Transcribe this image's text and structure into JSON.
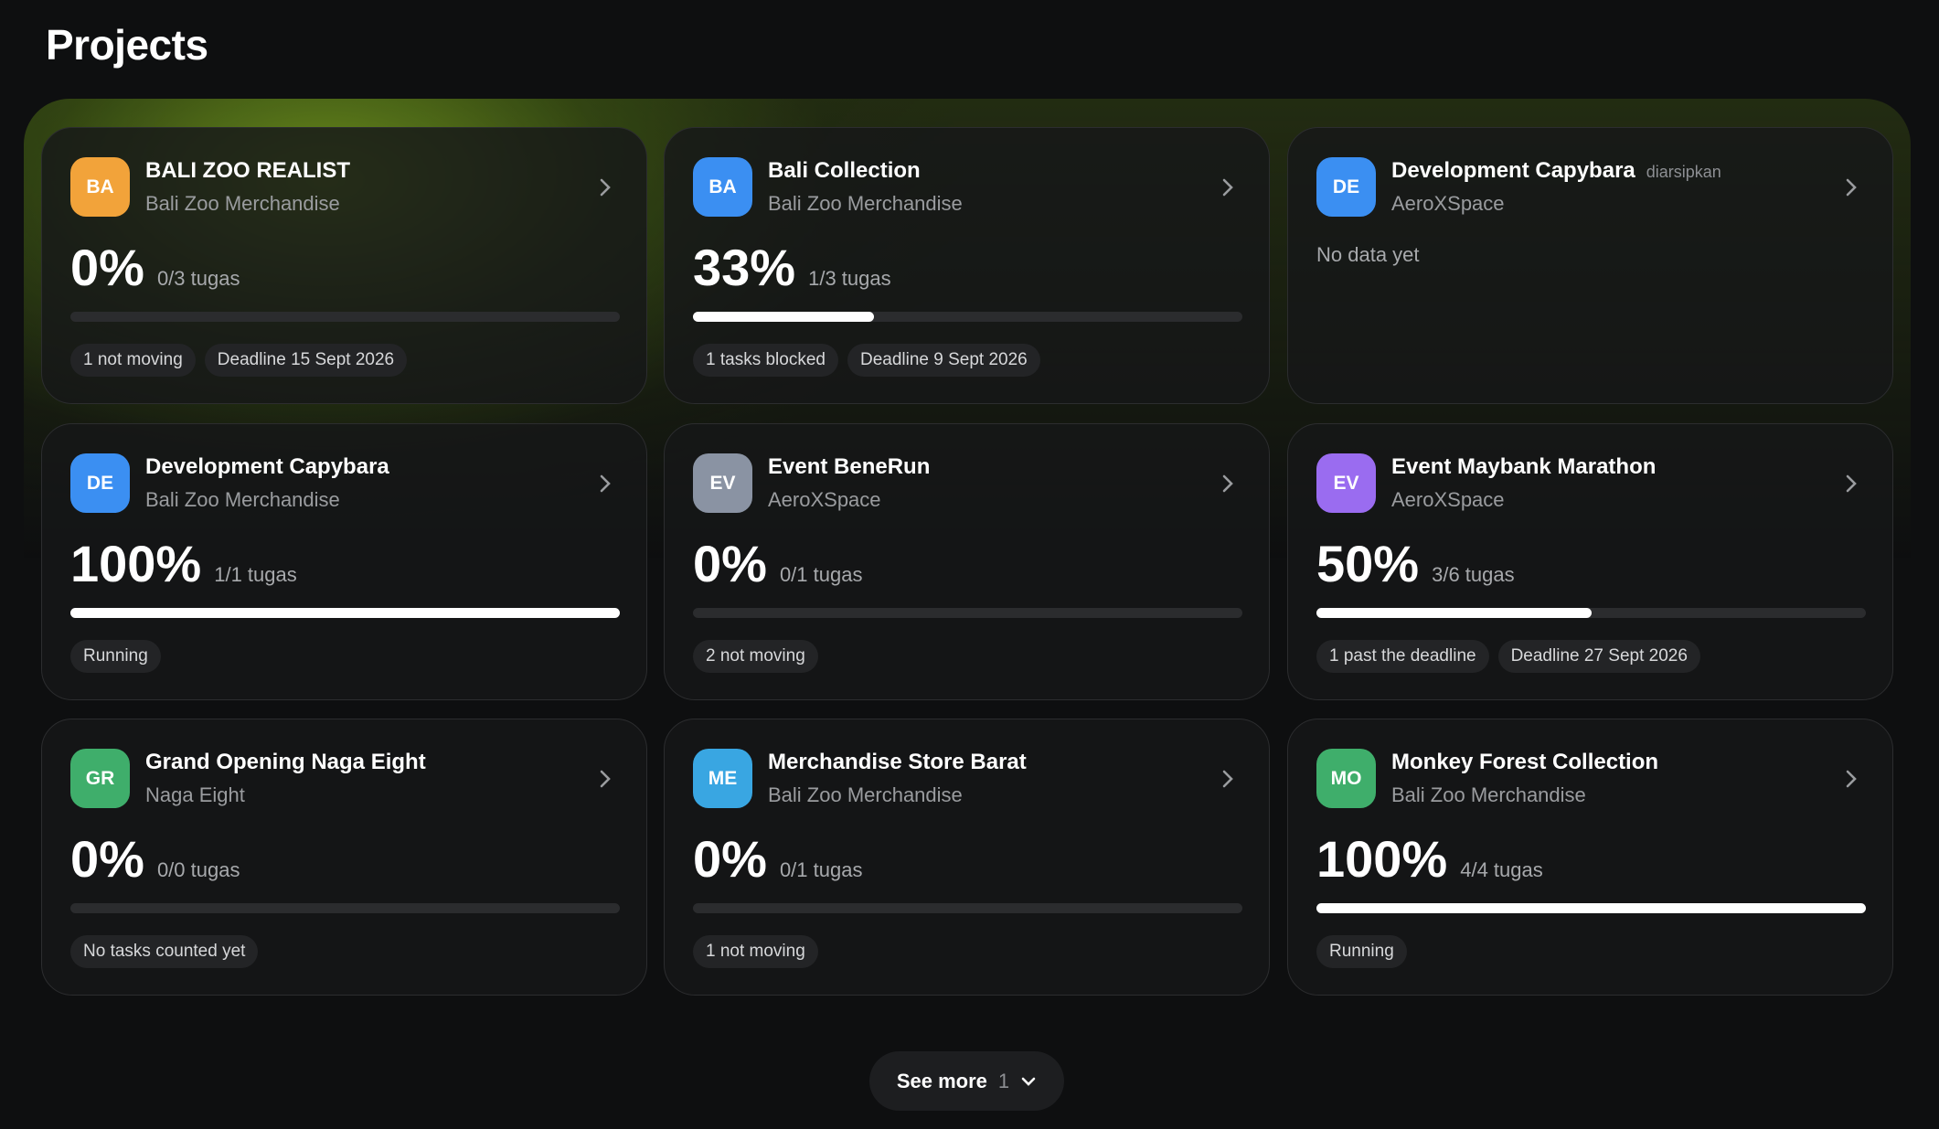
{
  "header": {
    "title": "Projects"
  },
  "projects": [
    {
      "avatar": "BA",
      "color": "#f2a33a",
      "name": "BALI ZOO REALIST",
      "org": "Bali Zoo Merchandise",
      "percent": {
        "value": 0,
        "label": "0%"
      },
      "tasks": "0/3 tugas",
      "badges": [
        "1 not moving",
        "Deadline 15 Sept 2026"
      ]
    },
    {
      "avatar": "BA",
      "color": "#3b8ff2",
      "name": "Bali Collection",
      "org": "Bali Zoo Merchandise",
      "percent": {
        "value": 33,
        "label": "33%"
      },
      "tasks": "1/3 tugas",
      "badges": [
        "1 tasks blocked",
        "Deadline 9 Sept 2026"
      ]
    },
    {
      "avatar": "DE",
      "color": "#3b8ff2",
      "name": "Development Capybara",
      "tag": "diarsipkan",
      "org": "AeroXSpace",
      "empty": "No data yet"
    },
    {
      "avatar": "DE",
      "color": "#3b8ff2",
      "name": "Development Capybara",
      "org": "Bali Zoo Merchandise",
      "percent": {
        "value": 100,
        "label": "100%"
      },
      "tasks": "1/1 tugas",
      "badges": [
        "Running"
      ]
    },
    {
      "avatar": "EV",
      "color": "#8a93a3",
      "name": "Event BeneRun",
      "org": "AeroXSpace",
      "percent": {
        "value": 0,
        "label": "0%"
      },
      "tasks": "0/1 tugas",
      "badges": [
        "2 not moving"
      ]
    },
    {
      "avatar": "EV",
      "color": "#9a6cf0",
      "name": "Event Maybank Marathon",
      "org": "AeroXSpace",
      "percent": {
        "value": 50,
        "label": "50%"
      },
      "tasks": "3/6 tugas",
      "badges": [
        "1 past the deadline",
        "Deadline 27 Sept 2026"
      ]
    },
    {
      "avatar": "GR",
      "color": "#3fae6b",
      "name": "Grand Opening Naga Eight",
      "org": "Naga Eight",
      "percent": {
        "value": 0,
        "label": "0%"
      },
      "tasks": "0/0 tugas",
      "badges": [
        "No tasks counted yet"
      ]
    },
    {
      "avatar": "ME",
      "color": "#39a6e2",
      "name": "Merchandise Store Barat",
      "org": "Bali Zoo Merchandise",
      "percent": {
        "value": 0,
        "label": "0%"
      },
      "tasks": "0/1 tugas",
      "badges": [
        "1 not moving"
      ]
    },
    {
      "avatar": "MO",
      "color": "#3fae6b",
      "name": "Monkey Forest Collection",
      "org": "Bali Zoo Merchandise",
      "percent": {
        "value": 100,
        "label": "100%"
      },
      "tasks": "4/4 tugas",
      "badges": [
        "Running"
      ]
    }
  ],
  "see_more": {
    "label": "See more",
    "count": "1"
  }
}
